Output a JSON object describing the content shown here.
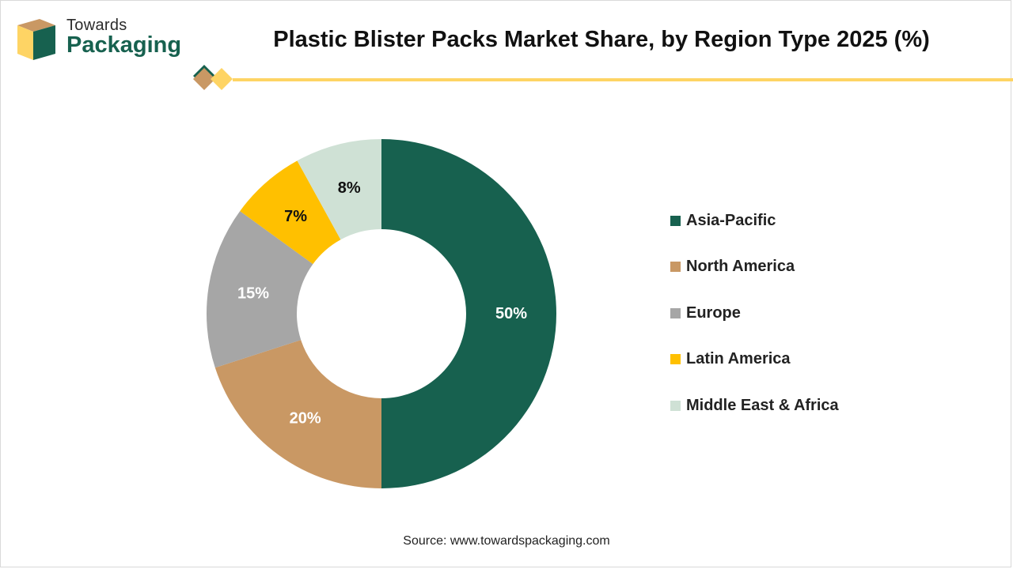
{
  "brand": {
    "line1": "Towards",
    "line2": "Packaging",
    "colors": {
      "green": "#17614f",
      "tan": "#c99864",
      "yellow": "#fed464"
    }
  },
  "chart_data": {
    "type": "pie",
    "style": "donut",
    "title": "Plastic Blister Packs Market Share, by Region Type 2025 (%)",
    "categories": [
      "Asia-Pacific",
      "North America",
      "Europe",
      "Latin America",
      "Middle East & Africa"
    ],
    "values": [
      50,
      20,
      15,
      7,
      8
    ],
    "data_labels": [
      "50%",
      "20%",
      "15%",
      "7%",
      "8%"
    ],
    "colors": [
      "#17614f",
      "#c99864",
      "#a6a6a6",
      "#ffc000",
      "#cfe1d5"
    ],
    "label_colors": [
      "#ffffff",
      "#ffffff",
      "#ffffff",
      "#111111",
      "#111111"
    ],
    "legend_position": "right",
    "source": "Source: www.towardspackaging.com"
  }
}
